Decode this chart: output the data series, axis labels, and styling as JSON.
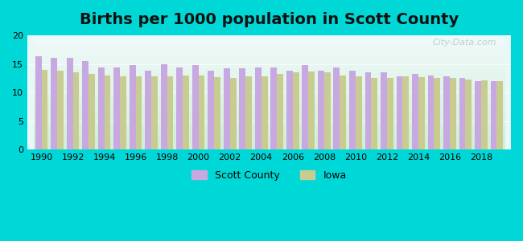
{
  "title": "Births per 1000 population in Scott County",
  "years": [
    1990,
    1991,
    1992,
    1993,
    1994,
    1995,
    1996,
    1997,
    1998,
    1999,
    2000,
    2001,
    2002,
    2003,
    2004,
    2005,
    2006,
    2007,
    2008,
    2009,
    2010,
    2011,
    2012,
    2013,
    2014,
    2015,
    2016,
    2017,
    2018,
    2019
  ],
  "scott_county": [
    16.4,
    16.0,
    16.0,
    15.5,
    14.4,
    14.4,
    14.8,
    13.8,
    14.9,
    14.4,
    14.8,
    13.8,
    14.3,
    14.2,
    14.4,
    14.4,
    13.8,
    14.8,
    13.8,
    14.4,
    13.8,
    13.5,
    13.5,
    12.8,
    13.2,
    13.0,
    12.8,
    12.5,
    12.0,
    12.0
  ],
  "iowa": [
    14.0,
    13.8,
    13.5,
    13.3,
    13.0,
    12.8,
    12.8,
    12.8,
    12.8,
    13.0,
    13.0,
    12.7,
    12.6,
    12.8,
    12.8,
    13.2,
    13.5,
    13.7,
    13.5,
    13.0,
    12.8,
    12.5,
    12.5,
    12.8,
    12.7,
    12.5,
    12.5,
    12.3,
    12.1,
    12.0
  ],
  "scott_color": "#c8a8e0",
  "iowa_color": "#c8cc90",
  "background_color": "#00d8d8",
  "plot_bg_top": "#e8f8f8",
  "plot_bg_bottom": "#c8f0d8",
  "ylim": [
    0,
    20
  ],
  "yticks": [
    0,
    5,
    10,
    15,
    20
  ],
  "xlabel_ticks": [
    1990,
    1992,
    1994,
    1996,
    1998,
    2000,
    2002,
    2004,
    2006,
    2008,
    2010,
    2012,
    2014,
    2016,
    2018
  ],
  "legend_scott": "Scott County",
  "legend_iowa": "Iowa",
  "title_fontsize": 14,
  "watermark": "City-Data.com"
}
